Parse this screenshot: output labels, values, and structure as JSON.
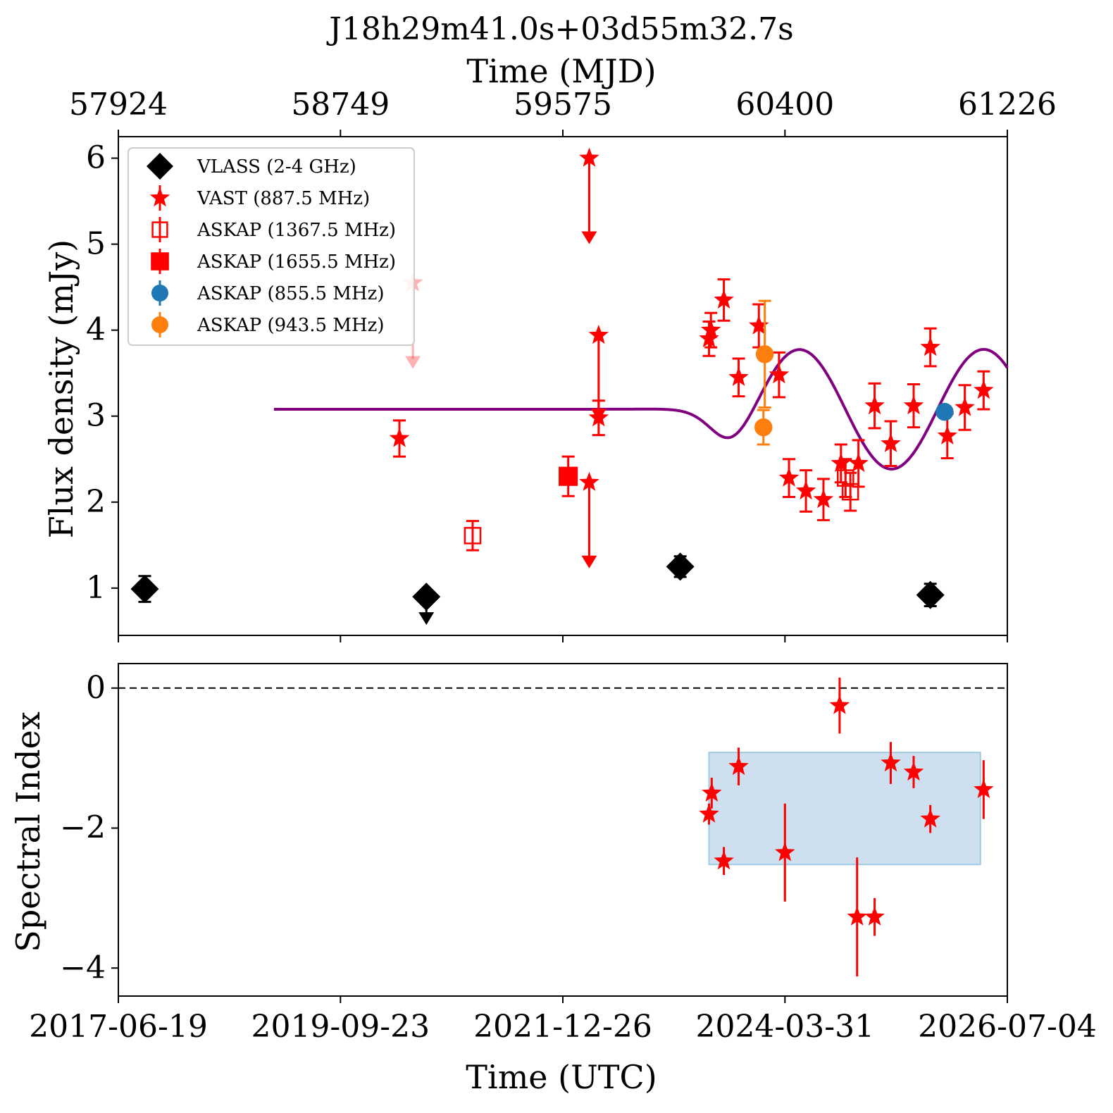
{
  "colors": {
    "vlass": "#000000",
    "vast": "#ff0000",
    "askap_1367": "#ff0000",
    "askap_1655": "#ff0000",
    "askap_855": "#1f77b4",
    "askap_943": "#ff7f0e",
    "model": "#800080",
    "band": "#c6dbec",
    "band_edge": "#9ecae1"
  },
  "chart_data": [
    {
      "type": "scatter",
      "panel": "top",
      "title": "J18h29m41.0s+03d55m32.7s",
      "ylabel": "Flux density (mJy)",
      "top_xlabel": "Time (MJD)",
      "top_ticks": [
        "57924",
        "58749",
        "59575",
        "60400",
        "61226"
      ],
      "top_tick_values": [
        57924,
        58749,
        59575,
        60400,
        61226
      ],
      "xlim": [
        57924,
        61226
      ],
      "ylim": [
        0.45,
        6.25
      ],
      "yticks": [
        1,
        2,
        3,
        4,
        5,
        6
      ],
      "ytick_labels": [
        "1",
        "2",
        "3",
        "4",
        "5",
        "6"
      ],
      "legend_position": "upper-left",
      "legend": [
        {
          "label": "VLASS (2-4 GHz)",
          "marker": "diamond",
          "color": "#000000"
        },
        {
          "label": "VAST (887.5 MHz)",
          "marker": "star",
          "color": "#ff0000"
        },
        {
          "label": "ASKAP (1367.5 MHz)",
          "marker": "open-square",
          "color": "#ff0000"
        },
        {
          "label": "ASKAP (1655.5 MHz)",
          "marker": "square",
          "color": "#ff0000"
        },
        {
          "label": "ASKAP (855.5 MHz)",
          "marker": "circle",
          "color": "#1f77b4"
        },
        {
          "label": "ASKAP (943.5 MHz)",
          "marker": "circle",
          "color": "#ff7f0e"
        }
      ],
      "series": [
        {
          "name": "VLASS (2-4 GHz)",
          "marker": "diamond",
          "color": "#000000",
          "points": [
            {
              "x": 58022,
              "y": 0.99,
              "err": 0.15
            },
            {
              "x": 59068,
              "y": 0.9,
              "upper_limit": true
            },
            {
              "x": 60011,
              "y": 1.25,
              "err": 0.12
            },
            {
              "x": 60940,
              "y": 0.92,
              "err": 0.13
            }
          ]
        },
        {
          "name": "VAST (887.5 MHz)",
          "marker": "star",
          "color": "#ff0000",
          "points": [
            {
              "x": 58968,
              "y": 2.74,
              "err": 0.21
            },
            {
              "x": 59018,
              "y": 4.55,
              "upper_limit": true,
              "faded": true
            },
            {
              "x": 59673,
              "y": 6.0,
              "upper_limit": true
            },
            {
              "x": 59708,
              "y": 3.94,
              "upper_limit": true
            },
            {
              "x": 59673,
              "y": 2.23,
              "upper_limit": true
            },
            {
              "x": 59708,
              "y": 2.98,
              "err": 0.2
            },
            {
              "x": 60118,
              "y": 3.9,
              "err": 0.2
            },
            {
              "x": 60125,
              "y": 4.0,
              "err": 0.2
            },
            {
              "x": 60173,
              "y": 4.35,
              "err": 0.24
            },
            {
              "x": 60228,
              "y": 3.45,
              "err": 0.22
            },
            {
              "x": 60303,
              "y": 4.05,
              "err": 0.25
            },
            {
              "x": 60378,
              "y": 3.48,
              "err": 0.26
            },
            {
              "x": 60415,
              "y": 2.28,
              "err": 0.22
            },
            {
              "x": 60478,
              "y": 2.13,
              "err": 0.24
            },
            {
              "x": 60543,
              "y": 2.03,
              "err": 0.24
            },
            {
              "x": 60608,
              "y": 2.45,
              "err": 0.22
            },
            {
              "x": 60673,
              "y": 2.45,
              "err": 0.27
            },
            {
              "x": 60733,
              "y": 3.12,
              "err": 0.26
            },
            {
              "x": 60793,
              "y": 2.68,
              "err": 0.26
            },
            {
              "x": 60878,
              "y": 3.12,
              "err": 0.25
            },
            {
              "x": 60940,
              "y": 3.8,
              "err": 0.22
            },
            {
              "x": 61003,
              "y": 2.77,
              "err": 0.26
            },
            {
              "x": 61068,
              "y": 3.1,
              "err": 0.26
            },
            {
              "x": 61138,
              "y": 3.3,
              "err": 0.22
            }
          ]
        },
        {
          "name": "ASKAP (1367.5 MHz)",
          "marker": "open-square",
          "color": "#ff0000",
          "points": [
            {
              "x": 59240,
              "y": 1.61,
              "err": 0.17
            },
            {
              "x": 60643,
              "y": 2.12,
              "err": 0.22
            },
            {
              "x": 60625,
              "y": 2.28,
              "err": 0.22
            }
          ]
        },
        {
          "name": "ASKAP (1655.5 MHz)",
          "marker": "square",
          "color": "#ff0000",
          "points": [
            {
              "x": 59595,
              "y": 2.3,
              "err": 0.23
            }
          ]
        },
        {
          "name": "ASKAP (855.5 MHz)",
          "marker": "circle",
          "color": "#1f77b4",
          "points": [
            {
              "x": 60993,
              "y": 3.05,
              "err": 0.05
            }
          ]
        },
        {
          "name": "ASKAP (943.5 MHz)",
          "marker": "circle",
          "color": "#ff7f0e",
          "points": [
            {
              "x": 60325,
              "y": 3.72,
              "err": 0.62
            },
            {
              "x": 60320,
              "y": 2.87,
              "err": 0.2
            }
          ]
        }
      ],
      "model_curve": {
        "color": "#800080",
        "x_start": 58502,
        "x_end": 61226,
        "baseline": 3.08,
        "amplitude": 1.2,
        "center": 60282,
        "period": 685,
        "width": 240,
        "taper_center": 60320,
        "taper_width": 400
      }
    },
    {
      "type": "scatter",
      "panel": "bottom",
      "xlabel": "Time (UTC)",
      "ylabel": "Spectral Index",
      "xticks": [
        "2017-06-19",
        "2019-09-23",
        "2021-12-26",
        "2024-03-31",
        "2026-07-04"
      ],
      "xtick_values": [
        57924,
        58749,
        59575,
        60400,
        61226
      ],
      "xlim": [
        57924,
        61226
      ],
      "ylim": [
        -4.4,
        0.35
      ],
      "yticks": [
        0,
        -2,
        -4
      ],
      "ytick_labels": [
        "0",
        "−2",
        "−4"
      ],
      "reference_line": 0,
      "band": {
        "x0": 60118,
        "x1": 61126,
        "y0": -2.52,
        "y1": -0.92
      },
      "series": [
        {
          "name": "",
          "marker": "star",
          "color": "#ff0000",
          "points": [
            {
              "x": 60118,
              "y": -1.8,
              "err": 0.15
            },
            {
              "x": 60128,
              "y": -1.5,
              "err": 0.22
            },
            {
              "x": 60173,
              "y": -2.47,
              "err": 0.2
            },
            {
              "x": 60228,
              "y": -1.12,
              "err": 0.27
            },
            {
              "x": 60400,
              "y": -2.35,
              "err": 0.7
            },
            {
              "x": 60603,
              "y": -0.25,
              "err": 0.4
            },
            {
              "x": 60668,
              "y": -3.27,
              "err": 0.85
            },
            {
              "x": 60733,
              "y": -3.27,
              "err": 0.27
            },
            {
              "x": 60793,
              "y": -1.07,
              "err": 0.3
            },
            {
              "x": 60878,
              "y": -1.2,
              "err": 0.23
            },
            {
              "x": 60940,
              "y": -1.87,
              "err": 0.2
            },
            {
              "x": 61138,
              "y": -1.45,
              "err": 0.42
            }
          ]
        }
      ]
    }
  ]
}
